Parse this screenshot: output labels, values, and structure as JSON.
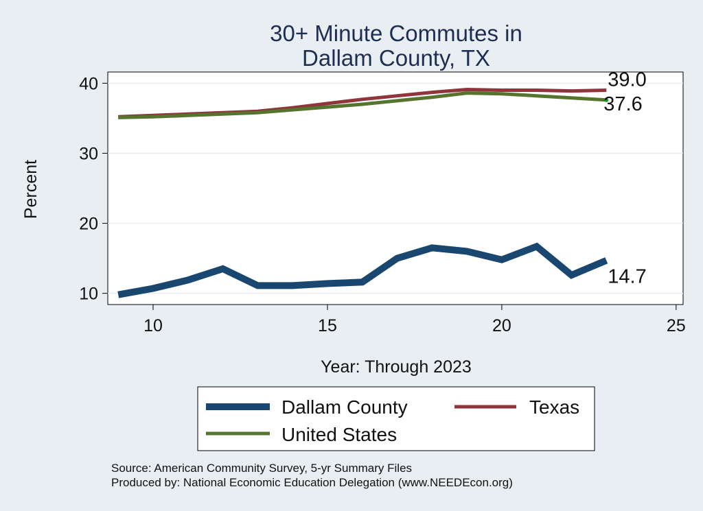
{
  "chart_data": {
    "type": "line",
    "title_lines": [
      "30+ Minute Commutes in",
      "Dallam County, TX"
    ],
    "xlabel": "Year: Through 2023",
    "ylabel": "Percent",
    "xlim": [
      8.7,
      25.2
    ],
    "ylim": [
      8.4,
      41.6
    ],
    "xticks": [
      10,
      15,
      20,
      25
    ],
    "yticks": [
      10,
      20,
      30,
      40
    ],
    "grid": "horizontal",
    "legend_position": "bottom",
    "x": [
      9,
      10,
      11,
      12,
      13,
      14,
      15,
      16,
      17,
      18,
      19,
      20,
      21,
      22,
      23
    ],
    "series": [
      {
        "name": "Dallam County",
        "color": "#1a476f",
        "width": 10,
        "values": [
          9.8,
          10.7,
          11.9,
          13.5,
          11.1,
          11.1,
          11.4,
          11.6,
          15.0,
          16.5,
          16.0,
          14.8,
          16.7,
          12.6,
          14.7
        ],
        "end_label": "14.7"
      },
      {
        "name": "Texas",
        "color": "#90353b",
        "width": 5,
        "values": [
          35.2,
          35.4,
          35.6,
          35.8,
          36.0,
          36.5,
          37.1,
          37.7,
          38.2,
          38.7,
          39.1,
          39.0,
          39.0,
          38.9,
          39.0
        ],
        "end_label": "39.0"
      },
      {
        "name": "United States",
        "color": "#55752f",
        "width": 5,
        "values": [
          35.1,
          35.2,
          35.4,
          35.6,
          35.8,
          36.2,
          36.6,
          37.0,
          37.5,
          38.0,
          38.6,
          38.5,
          38.2,
          37.9,
          37.6
        ],
        "end_label": "37.6"
      }
    ]
  },
  "footer": {
    "source": "Source: American Community Survey, 5-yr Summary Files",
    "producer": "Produced by: National Economic Education Delegation (www.NEEDEcon.org)"
  }
}
